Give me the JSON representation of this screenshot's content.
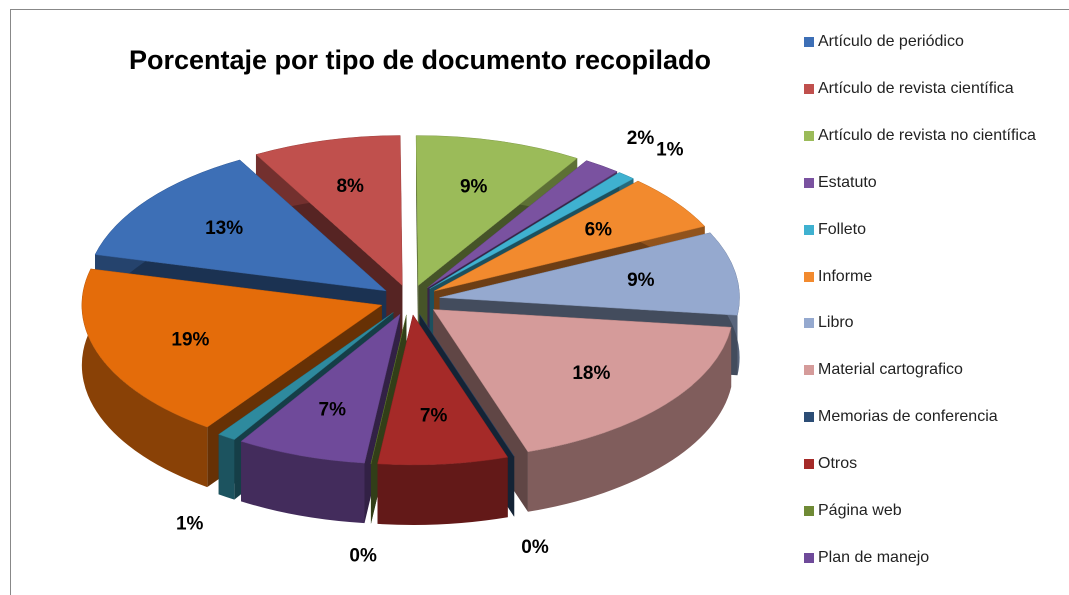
{
  "chart_data": {
    "type": "pie",
    "title": "Porcentaje por tipo de documento recopilado",
    "categories": [
      "Artículo de periódico",
      "Artículo de revista científica",
      "Artículo de revista no científica",
      "Estatuto",
      "Folleto",
      "Informe",
      "Libro",
      "Material cartografico",
      "Memorias de conferencia",
      "Otros",
      "Página web",
      "Plan de manejo",
      null,
      null
    ],
    "values": [
      13,
      8,
      9,
      2,
      1,
      6,
      9,
      18,
      0,
      7,
      0,
      7,
      1,
      19
    ],
    "value_labels": [
      "13%",
      "8%",
      "9%",
      "2%",
      "1%",
      "6%",
      "9%",
      "18%",
      "0%",
      "7%",
      "0%",
      "7%",
      "1%",
      "19%"
    ],
    "colors": [
      "#3d6fb6",
      "#c0504d",
      "#9bbb59",
      "#7a52a0",
      "#3fb1d0",
      "#f28a2e",
      "#95a9cf",
      "#d59b9a",
      "#2c4d75",
      "#a52a28",
      "#6f8a35",
      "#6f4a9a",
      "#2e8a9e",
      "#e46c0a"
    ],
    "legend": "right"
  }
}
